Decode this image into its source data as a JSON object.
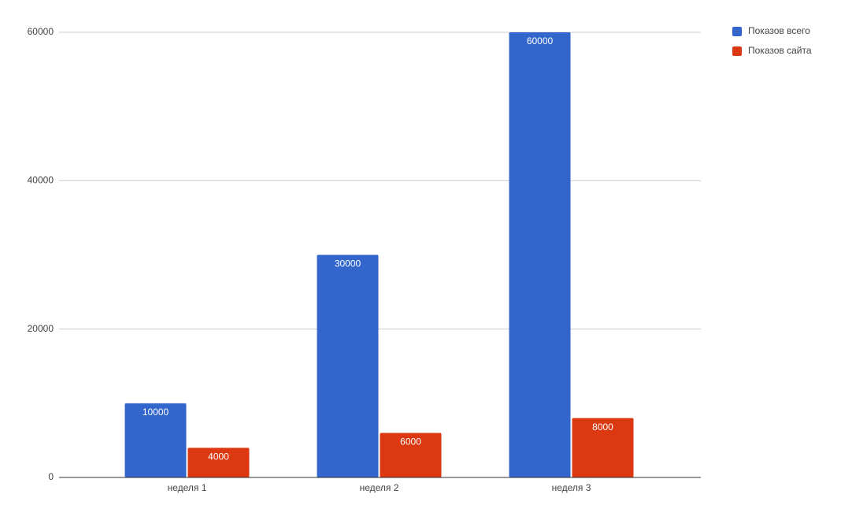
{
  "chart_data": {
    "type": "bar",
    "categories": [
      "неделя 1",
      "неделя 2",
      "неделя 3"
    ],
    "series": [
      {
        "name": "Показов всего",
        "color": "#3366cc",
        "values": [
          10000,
          30000,
          60000
        ]
      },
      {
        "name": "Показов сайта",
        "color": "#dc3912",
        "values": [
          4000,
          6000,
          8000
        ]
      }
    ],
    "ylim": [
      0,
      60000
    ],
    "yticks": [
      0,
      20000,
      40000,
      60000
    ],
    "grid": true,
    "legend": "right",
    "data_labels": true
  }
}
